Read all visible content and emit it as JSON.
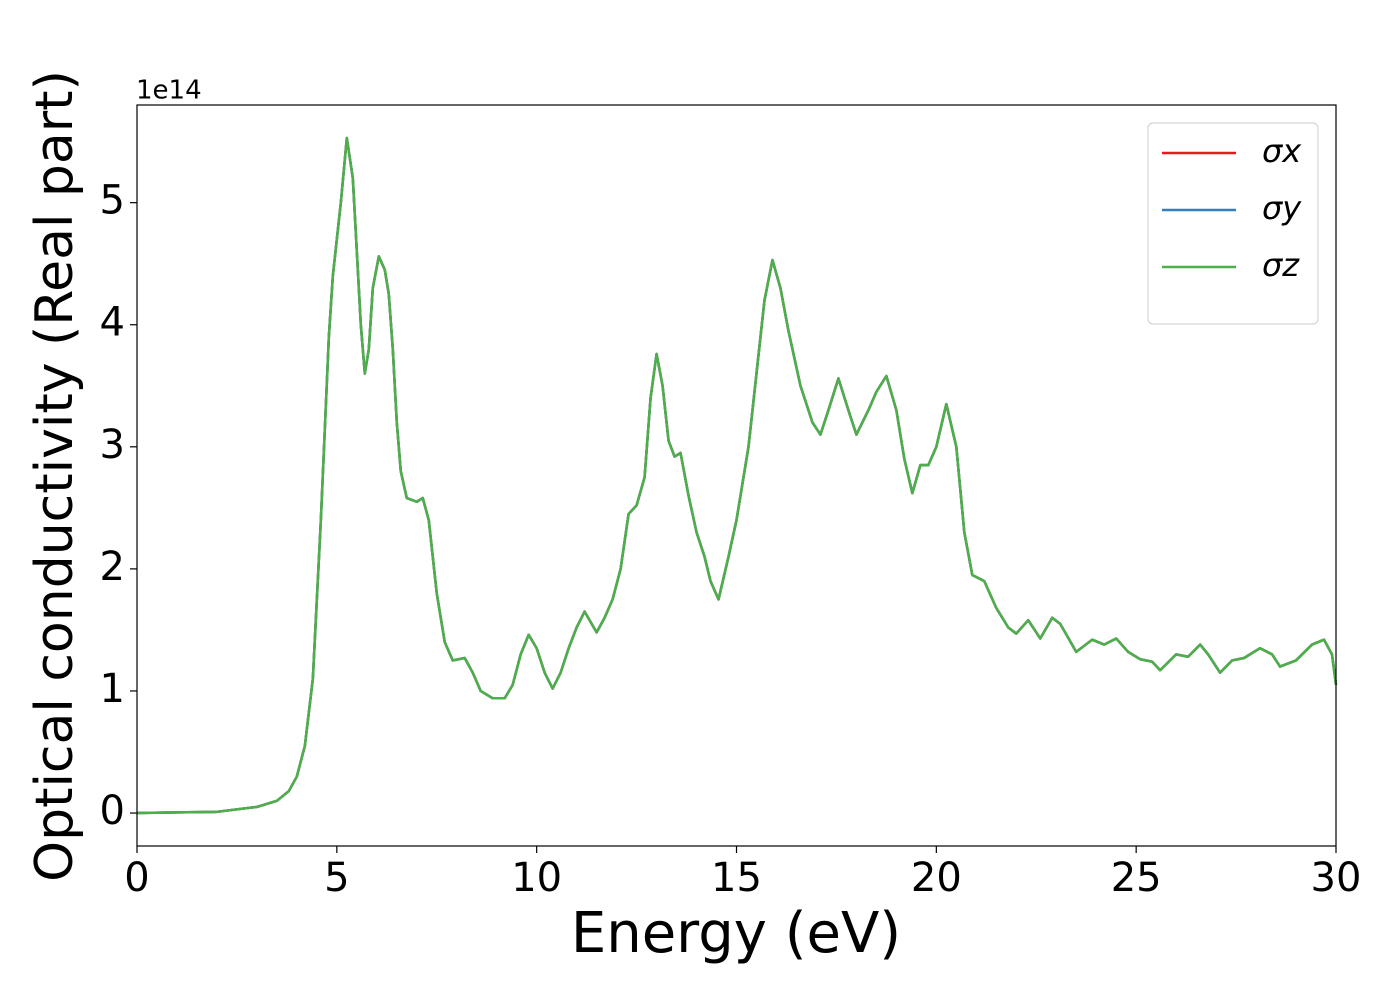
{
  "chart_data": {
    "type": "line",
    "xlabel": "Energy (eV)",
    "ylabel": "Optical conductivity (Real part)",
    "y_offset_label": "1e14",
    "xlim": [
      0,
      30
    ],
    "ylim": [
      -0.27,
      5.8
    ],
    "xticks": [
      0,
      5,
      10,
      15,
      20,
      25,
      30
    ],
    "yticks": [
      0,
      1,
      2,
      3,
      4,
      5
    ],
    "legend": "upper right",
    "x": [
      0,
      1,
      2,
      3,
      3.5,
      3.8,
      4.0,
      4.2,
      4.4,
      4.6,
      4.8,
      4.9,
      5.0,
      5.1,
      5.25,
      5.4,
      5.5,
      5.6,
      5.7,
      5.8,
      5.9,
      6.05,
      6.2,
      6.3,
      6.4,
      6.5,
      6.6,
      6.75,
      7.0,
      7.15,
      7.3,
      7.5,
      7.7,
      7.9,
      8.2,
      8.4,
      8.6,
      8.9,
      9.2,
      9.4,
      9.6,
      9.8,
      10.0,
      10.2,
      10.4,
      10.6,
      10.8,
      11.0,
      11.2,
      11.5,
      11.7,
      11.9,
      12.1,
      12.3,
      12.5,
      12.7,
      12.85,
      13.0,
      13.15,
      13.3,
      13.45,
      13.6,
      13.8,
      14.0,
      14.2,
      14.35,
      14.55,
      14.8,
      15.0,
      15.3,
      15.5,
      15.7,
      15.9,
      16.1,
      16.3,
      16.6,
      16.9,
      17.1,
      17.3,
      17.55,
      17.8,
      18.0,
      18.3,
      18.5,
      18.75,
      19.0,
      19.2,
      19.4,
      19.6,
      19.8,
      20.0,
      20.25,
      20.5,
      20.7,
      20.9,
      21.2,
      21.5,
      21.8,
      22.0,
      22.3,
      22.6,
      22.9,
      23.1,
      23.5,
      23.9,
      24.2,
      24.5,
      24.8,
      25.1,
      25.4,
      25.6,
      26.0,
      26.3,
      26.6,
      26.8,
      27.1,
      27.4,
      27.7,
      28.1,
      28.4,
      28.6,
      29.0,
      29.4,
      29.7,
      29.9,
      30.0
    ],
    "series": [
      {
        "name": "σx",
        "color": "#e41a1c",
        "values": [
          0,
          0.005,
          0.01,
          0.05,
          0.1,
          0.18,
          0.3,
          0.55,
          1.1,
          2.4,
          3.9,
          4.4,
          4.7,
          5.0,
          5.53,
          5.2,
          4.6,
          4.0,
          3.6,
          3.8,
          4.3,
          4.56,
          4.45,
          4.25,
          3.8,
          3.2,
          2.8,
          2.58,
          2.55,
          2.58,
          2.4,
          1.8,
          1.4,
          1.25,
          1.27,
          1.15,
          1.0,
          0.94,
          0.94,
          1.05,
          1.3,
          1.46,
          1.35,
          1.15,
          1.02,
          1.15,
          1.35,
          1.52,
          1.65,
          1.48,
          1.6,
          1.75,
          2.0,
          2.45,
          2.52,
          2.75,
          3.4,
          3.76,
          3.5,
          3.05,
          2.92,
          2.95,
          2.6,
          2.3,
          2.1,
          1.9,
          1.75,
          2.1,
          2.4,
          3.0,
          3.6,
          4.2,
          4.53,
          4.3,
          3.95,
          3.5,
          3.2,
          3.1,
          3.3,
          3.56,
          3.3,
          3.1,
          3.3,
          3.45,
          3.58,
          3.3,
          2.9,
          2.62,
          2.85,
          2.85,
          3.0,
          3.35,
          3.0,
          2.3,
          1.95,
          1.9,
          1.68,
          1.52,
          1.47,
          1.58,
          1.43,
          1.6,
          1.55,
          1.32,
          1.42,
          1.38,
          1.43,
          1.32,
          1.26,
          1.24,
          1.17,
          1.3,
          1.28,
          1.38,
          1.3,
          1.15,
          1.25,
          1.27,
          1.35,
          1.3,
          1.2,
          1.25,
          1.38,
          1.42,
          1.3,
          1.05
        ]
      },
      {
        "name": "σy",
        "color": "#377eb8",
        "values": [
          0,
          0.005,
          0.01,
          0.05,
          0.1,
          0.18,
          0.3,
          0.55,
          1.1,
          2.4,
          3.9,
          4.4,
          4.7,
          5.0,
          5.53,
          5.2,
          4.6,
          4.0,
          3.6,
          3.8,
          4.3,
          4.56,
          4.45,
          4.25,
          3.8,
          3.2,
          2.8,
          2.58,
          2.55,
          2.58,
          2.4,
          1.8,
          1.4,
          1.25,
          1.27,
          1.15,
          1.0,
          0.94,
          0.94,
          1.05,
          1.3,
          1.46,
          1.35,
          1.15,
          1.02,
          1.15,
          1.35,
          1.52,
          1.65,
          1.48,
          1.6,
          1.75,
          2.0,
          2.45,
          2.52,
          2.75,
          3.4,
          3.76,
          3.5,
          3.05,
          2.92,
          2.95,
          2.6,
          2.3,
          2.1,
          1.9,
          1.75,
          2.1,
          2.4,
          3.0,
          3.6,
          4.2,
          4.53,
          4.3,
          3.95,
          3.5,
          3.2,
          3.1,
          3.3,
          3.56,
          3.3,
          3.1,
          3.3,
          3.45,
          3.58,
          3.3,
          2.9,
          2.62,
          2.85,
          2.85,
          3.0,
          3.35,
          3.0,
          2.3,
          1.95,
          1.9,
          1.68,
          1.52,
          1.47,
          1.58,
          1.43,
          1.6,
          1.55,
          1.32,
          1.42,
          1.38,
          1.43,
          1.32,
          1.26,
          1.24,
          1.17,
          1.3,
          1.28,
          1.38,
          1.3,
          1.15,
          1.25,
          1.27,
          1.35,
          1.3,
          1.2,
          1.25,
          1.38,
          1.42,
          1.3,
          1.05
        ]
      },
      {
        "name": "σz",
        "color": "#4daf4a",
        "values": [
          0,
          0.005,
          0.01,
          0.05,
          0.1,
          0.18,
          0.3,
          0.55,
          1.1,
          2.4,
          3.9,
          4.4,
          4.7,
          5.0,
          5.53,
          5.2,
          4.6,
          4.0,
          3.6,
          3.8,
          4.3,
          4.56,
          4.45,
          4.25,
          3.8,
          3.2,
          2.8,
          2.58,
          2.55,
          2.58,
          2.4,
          1.8,
          1.4,
          1.25,
          1.27,
          1.15,
          1.0,
          0.94,
          0.94,
          1.05,
          1.3,
          1.46,
          1.35,
          1.15,
          1.02,
          1.15,
          1.35,
          1.52,
          1.65,
          1.48,
          1.6,
          1.75,
          2.0,
          2.45,
          2.52,
          2.75,
          3.4,
          3.76,
          3.5,
          3.05,
          2.92,
          2.95,
          2.6,
          2.3,
          2.1,
          1.9,
          1.75,
          2.1,
          2.4,
          3.0,
          3.6,
          4.2,
          4.53,
          4.3,
          3.95,
          3.5,
          3.2,
          3.1,
          3.3,
          3.56,
          3.3,
          3.1,
          3.3,
          3.45,
          3.58,
          3.3,
          2.9,
          2.62,
          2.85,
          2.85,
          3.0,
          3.35,
          3.0,
          2.3,
          1.95,
          1.9,
          1.68,
          1.52,
          1.47,
          1.58,
          1.43,
          1.6,
          1.55,
          1.32,
          1.42,
          1.38,
          1.43,
          1.32,
          1.26,
          1.24,
          1.17,
          1.3,
          1.28,
          1.38,
          1.3,
          1.15,
          1.25,
          1.27,
          1.35,
          1.3,
          1.2,
          1.25,
          1.38,
          1.42,
          1.3,
          1.05
        ]
      }
    ]
  }
}
